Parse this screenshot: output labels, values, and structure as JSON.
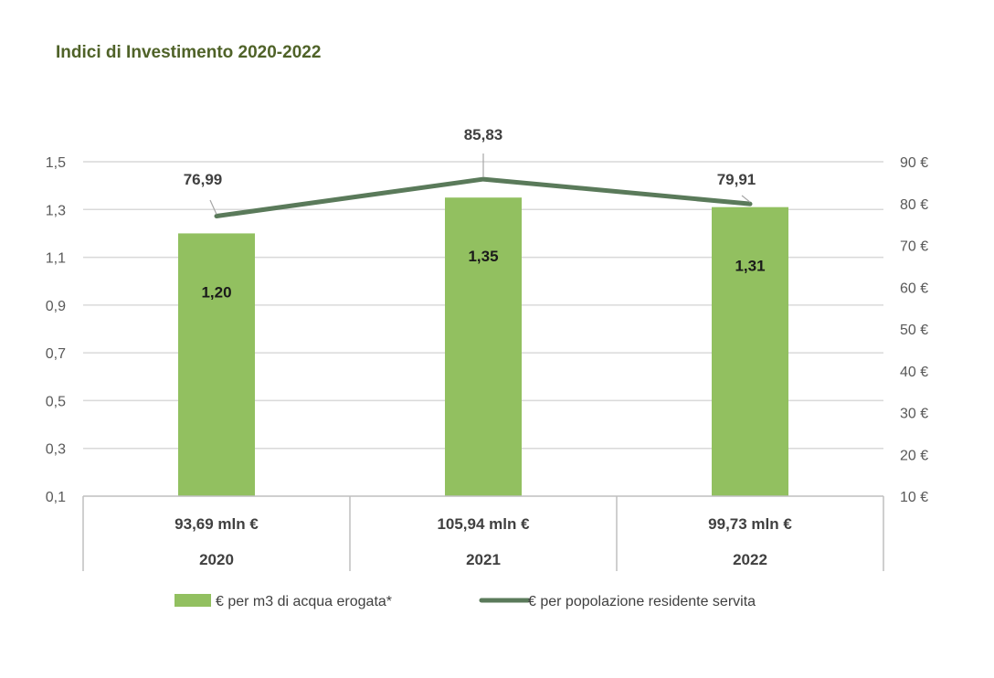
{
  "chart_data": {
    "type": "bar",
    "title": "Indici di Investimento 2020-2022",
    "categories": [
      "2020",
      "2021",
      "2022"
    ],
    "category_sublabels": [
      "93,69 mln €",
      "105,94 mln €",
      "99,73 mln €"
    ],
    "series": [
      {
        "name": "€ per m3 di acqua erogata*",
        "type": "bar",
        "axis": "left",
        "values": [
          1.2,
          1.35,
          1.31
        ],
        "labels": [
          "1,20",
          "1,35",
          "1,31"
        ],
        "color": "#92c060"
      },
      {
        "name": "€ per popolazione residente servita",
        "type": "line",
        "axis": "right",
        "values": [
          76.99,
          85.83,
          79.91
        ],
        "labels": [
          "76,99",
          "85,83",
          "79,91"
        ],
        "color": "#5a7a5a"
      }
    ],
    "left_axis": {
      "range": [
        0.1,
        1.5
      ],
      "ticks": [
        0.1,
        0.3,
        0.5,
        0.7,
        0.9,
        1.1,
        1.3,
        1.5
      ],
      "tick_labels": [
        "0,1",
        "0,3",
        "0,5",
        "0,7",
        "0,9",
        "1,1",
        "1,3",
        "1,5"
      ]
    },
    "right_axis": {
      "range": [
        10,
        90
      ],
      "ticks": [
        10,
        20,
        30,
        40,
        50,
        60,
        70,
        80,
        90
      ],
      "tick_labels": [
        "10 €",
        "20 €",
        "30 €",
        "40 €",
        "50 €",
        "60 €",
        "70 €",
        "80 €",
        "90 €"
      ]
    },
    "grid": true,
    "legend": "bottom",
    "xlabel": "",
    "ylabel": ""
  },
  "colors": {
    "title": "#4f6228",
    "bar": "#92c060",
    "line": "#5a7a5a",
    "grid": "#d9d9d9"
  }
}
